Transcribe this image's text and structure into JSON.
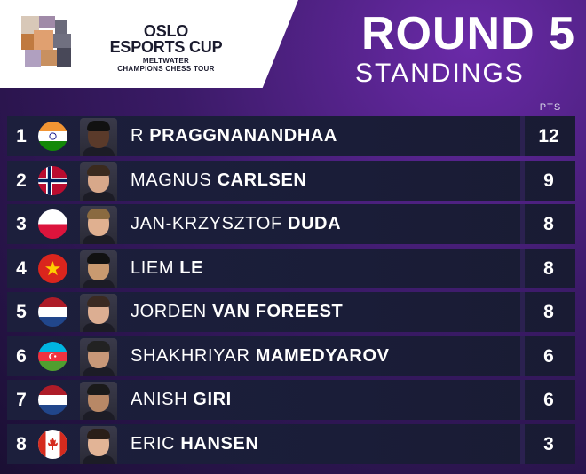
{
  "logo": {
    "line1": "OSLO",
    "line2": "ESPORTS CUP",
    "line3": "MELTWATER",
    "line4": "CHAMPIONS CHESS TOUR"
  },
  "header": {
    "round": "ROUND 5",
    "subtitle": "STANDINGS",
    "pts_label": "PTS"
  },
  "players": [
    {
      "rank": "1",
      "first": "R",
      "last": "PRAGGNANANDHAA",
      "pts": "12",
      "flag": "india",
      "skin": "#5a3a2a",
      "hair": "#111"
    },
    {
      "rank": "2",
      "first": "MAGNUS",
      "last": "CARLSEN",
      "pts": "9",
      "flag": "norway",
      "skin": "#d8a88a",
      "hair": "#3a2a1e"
    },
    {
      "rank": "3",
      "first": "JAN-KRZYSZTOF",
      "last": "DUDA",
      "pts": "8",
      "flag": "poland",
      "skin": "#e0b090",
      "hair": "#8a6a40"
    },
    {
      "rank": "4",
      "first": "LIEM",
      "last": "LE",
      "pts": "8",
      "flag": "vietnam",
      "skin": "#c99a70",
      "hair": "#111"
    },
    {
      "rank": "5",
      "first": "JORDEN",
      "last": "VAN FOREEST",
      "pts": "8",
      "flag": "netherlands",
      "skin": "#dcae92",
      "hair": "#3a2a22"
    },
    {
      "rank": "6",
      "first": "SHAKHRIYAR",
      "last": "MAMEDYAROV",
      "pts": "6",
      "flag": "azerbaijan",
      "skin": "#c89878",
      "hair": "#222"
    },
    {
      "rank": "7",
      "first": "ANISH",
      "last": "GIRI",
      "pts": "6",
      "flag": "netherlands",
      "skin": "#b88866",
      "hair": "#1a1a1a"
    },
    {
      "rank": "8",
      "first": "ERIC",
      "last": "HANSEN",
      "pts": "3",
      "flag": "canada",
      "skin": "#e2b496",
      "hair": "#2a1e18"
    }
  ],
  "colors": {
    "panel": "#1c1f3c",
    "bg_accent": "#6a2aa8",
    "divider": "#2b2150"
  }
}
